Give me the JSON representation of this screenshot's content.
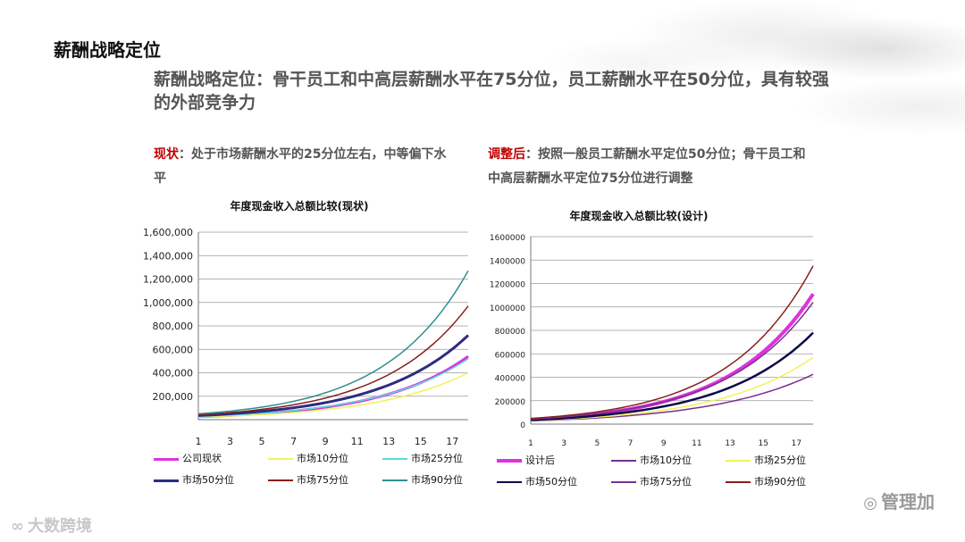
{
  "slide": {
    "title": "薪酬战略定位",
    "subtitle": "薪酬战略定位：骨干员工和中高层薪酬水平在75分位，员工薪酬水平在50分位，具有较强的外部竞争力"
  },
  "notes": {
    "left_tag": "现状",
    "left_text": "：处于市场薪酬水平的25分位左右，中等偏下水平",
    "right_tag": "调整后",
    "right_text": "：按照一般员工薪酬水平定位50分位；骨干员工和中高层薪酬水平定位75分位进行调整"
  },
  "watermarks": {
    "left": "大数跨境",
    "right": "管理加"
  },
  "colors": {
    "title_red": "#c00000",
    "magenta": "#dd33dd",
    "yellow": "#f2f25a",
    "cyan": "#55dddd",
    "navy": "#2c2c80",
    "darkred": "#8b1e1e",
    "teal": "#2f8f8f",
    "purple": "#7a2f8f",
    "black_navy": "#0a0a4a"
  },
  "chart_data": [
    {
      "type": "line",
      "title": "年度现金收入总额比较(现状)",
      "ylim": [
        0,
        1600000
      ],
      "yticks": [
        "200,000",
        "400,000",
        "600,000",
        "800,000",
        "1,000,000",
        "1,200,000",
        "1,400,000",
        "1,600,000"
      ],
      "ytick_values": [
        200000,
        400000,
        600000,
        800000,
        1000000,
        1200000,
        1400000,
        1600000
      ],
      "xlim": [
        1,
        18
      ],
      "xticks": [
        "1",
        "3",
        "5",
        "7",
        "9",
        "11",
        "13",
        "15",
        "17"
      ],
      "xtick_values": [
        1,
        3,
        5,
        7,
        9,
        11,
        13,
        15,
        17
      ],
      "grid": true,
      "series": [
        {
          "name": "公司现状",
          "color": "#dd33dd",
          "width": 3,
          "start": 25000,
          "end": 540000
        },
        {
          "name": "市场10分位",
          "color": "#f2f25a",
          "width": 1.5,
          "start": 22000,
          "end": 400000
        },
        {
          "name": "市场25分位",
          "color": "#55dddd",
          "width": 1.5,
          "start": 28000,
          "end": 520000
        },
        {
          "name": "市场50分位",
          "color": "#2c2c80",
          "width": 3,
          "start": 35000,
          "end": 720000
        },
        {
          "name": "市场75分位",
          "color": "#8b1e1e",
          "width": 1.5,
          "start": 42000,
          "end": 970000
        },
        {
          "name": "市场90分位",
          "color": "#2f8f8f",
          "width": 1.5,
          "start": 50000,
          "end": 1270000
        }
      ]
    },
    {
      "type": "line",
      "title": "年度现金收入总额比较(设计)",
      "ylim": [
        0,
        1600000
      ],
      "yticks": [
        "0",
        "200000",
        "400000",
        "600000",
        "800000",
        "1000000",
        "1200000",
        "1400000",
        "1600000"
      ],
      "ytick_values": [
        0,
        200000,
        400000,
        600000,
        800000,
        1000000,
        1200000,
        1400000,
        1600000
      ],
      "xlim": [
        1,
        18
      ],
      "xticks": [
        "1",
        "3",
        "5",
        "7",
        "9",
        "11",
        "13",
        "15",
        "17"
      ],
      "xtick_values": [
        1,
        3,
        5,
        7,
        9,
        11,
        13,
        15,
        17
      ],
      "grid": true,
      "series": [
        {
          "name": "设计后",
          "color": "#dd33dd",
          "width": 4,
          "start": 40000,
          "end": 1110000
        },
        {
          "name": "市场10分位",
          "color": "#7a2f8f",
          "width": 1.5,
          "start": 28000,
          "end": 425000
        },
        {
          "name": "市场25分位",
          "color": "#f2f25a",
          "width": 1.5,
          "start": 30000,
          "end": 570000
        },
        {
          "name": "市场50分位",
          "color": "#0a0a4a",
          "width": 2.5,
          "start": 35000,
          "end": 780000
        },
        {
          "name": "市场75分位",
          "color": "#7a2f8f",
          "width": 1.5,
          "start": 42000,
          "end": 1040000
        },
        {
          "name": "市场90分位",
          "color": "#8b1e1e",
          "width": 1.5,
          "start": 48000,
          "end": 1350000
        }
      ]
    }
  ]
}
